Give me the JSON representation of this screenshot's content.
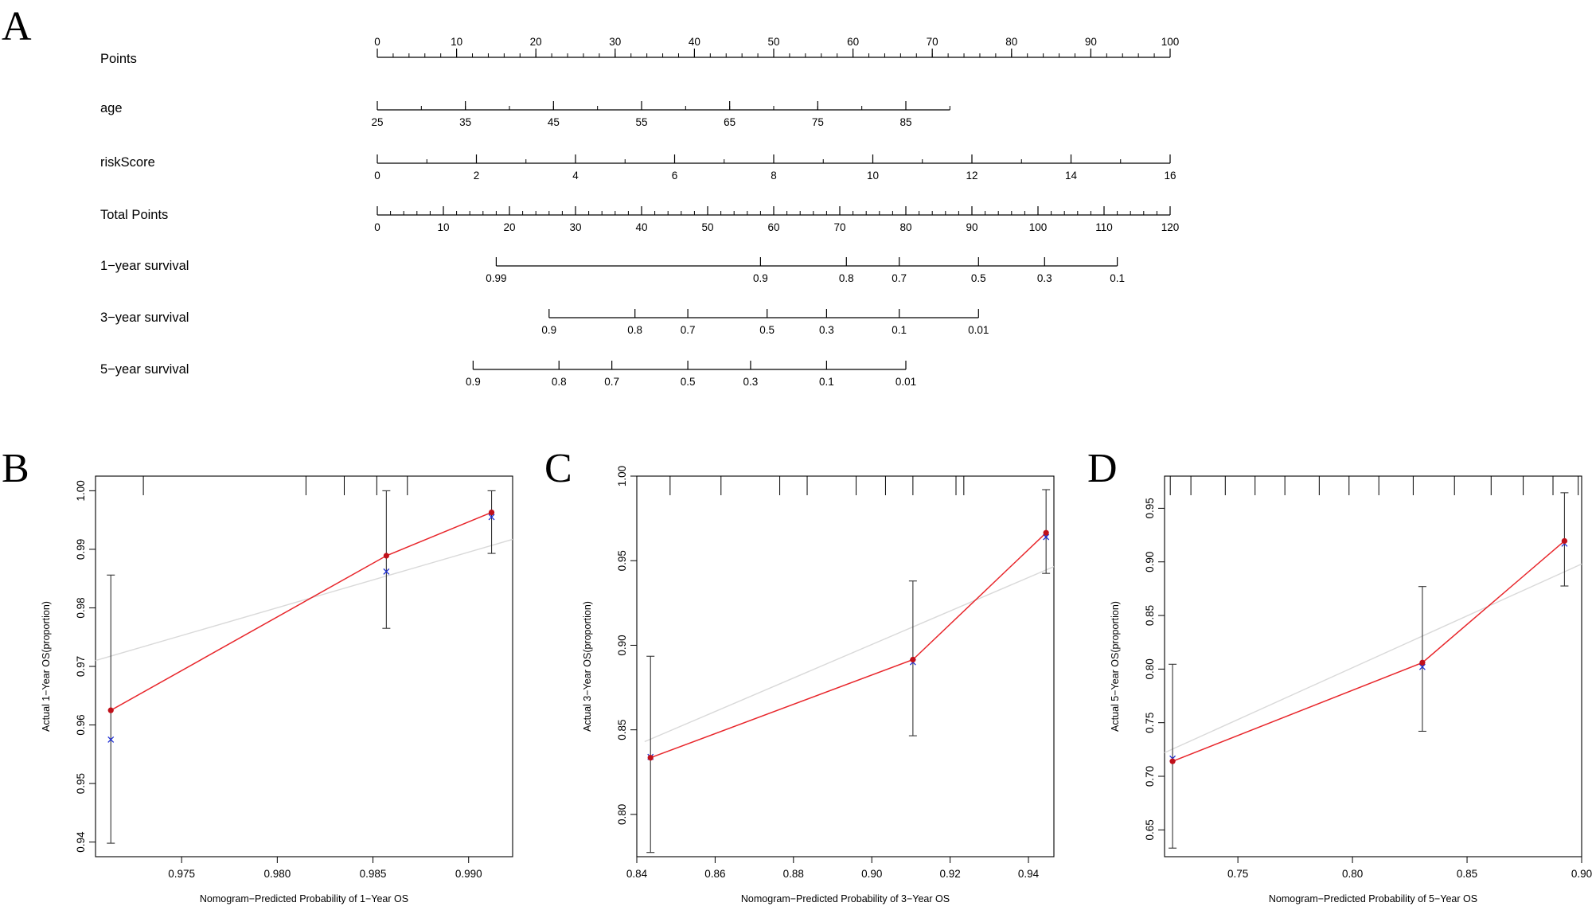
{
  "panel_letters": [
    "A",
    "B",
    "C",
    "D"
  ],
  "chart_data": [
    {
      "panel": "A",
      "type": "nomogram",
      "scales": [
        {
          "label": "Points",
          "ticks": [
            0,
            10,
            20,
            30,
            40,
            50,
            60,
            70,
            80,
            90,
            100
          ],
          "labels_above": true,
          "min": 0,
          "max": 100,
          "minor_step": 2
        },
        {
          "label": "age",
          "ticks": [
            25,
            35,
            45,
            55,
            65,
            75,
            85
          ],
          "min": 25,
          "max": 90,
          "minor_step": 5
        },
        {
          "label": "riskScore",
          "ticks": [
            0,
            2,
            4,
            6,
            8,
            10,
            12,
            14,
            16
          ],
          "min": 0,
          "max": 16,
          "minor_step": 1
        },
        {
          "label": "Total Points",
          "ticks": [
            0,
            10,
            20,
            30,
            40,
            50,
            60,
            70,
            80,
            90,
            100,
            110,
            120
          ],
          "min": 0,
          "max": 120,
          "minor_step": 2
        },
        {
          "label": "1−year survival",
          "prob_ticks": [
            "0.99",
            "0.9",
            "0.8",
            "0.7",
            "0.5",
            "0.3",
            "0.1"
          ],
          "total_points_at": [
            18,
            58,
            71,
            79,
            91,
            101,
            112
          ]
        },
        {
          "label": "3−year survival",
          "prob_ticks": [
            "0.9",
            "0.8",
            "0.7",
            "0.5",
            "0.3",
            "0.1",
            "0.01"
          ],
          "total_points_at": [
            26,
            39,
            47,
            59,
            68,
            79,
            91
          ]
        },
        {
          "label": "5−year survival",
          "prob_ticks": [
            "0.9",
            "0.8",
            "0.7",
            "0.5",
            "0.3",
            "0.1",
            "0.01"
          ],
          "total_points_at": [
            14.5,
            27.5,
            35.5,
            47,
            56.5,
            68,
            80
          ]
        }
      ]
    },
    {
      "panel": "B",
      "type": "calibration",
      "xlabel": "Nomogram−Predicted Probability of 1−Year OS",
      "ylabel": "Actual 1−Year OS(proportion)",
      "xlim": [
        0.9705,
        0.9923
      ],
      "ylim": [
        0.9375,
        1.0025
      ],
      "xticks": [
        "0.975",
        "0.980",
        "0.985",
        "0.990"
      ],
      "yticks": [
        "0.94",
        "0.95",
        "0.96",
        "0.97",
        "0.98",
        "0.99",
        "1.00"
      ],
      "top_rug": [
        0.973,
        0.9815,
        0.9835,
        0.9852,
        0.9868
      ],
      "observed": [
        {
          "x": 0.9713,
          "y": 0.9625
        },
        {
          "x": 0.9857,
          "y": 0.9889
        },
        {
          "x": 0.9912,
          "y": 0.9963
        }
      ],
      "corrected": [
        {
          "x": 0.9713,
          "y": 0.9575
        },
        {
          "x": 0.9857,
          "y": 0.9862
        },
        {
          "x": 0.9912,
          "y": 0.9955
        }
      ],
      "error_bars": [
        {
          "x": 0.9713,
          "low": 0.9398,
          "high": 0.9856
        },
        {
          "x": 0.9857,
          "low": 0.9765,
          "high": 1.0
        },
        {
          "x": 0.9912,
          "low": 0.9893,
          "high": 1.0
        }
      ],
      "ideal_line": [
        {
          "x": 0.9705,
          "y": 0.971
        },
        {
          "x": 0.9923,
          "y": 0.9917
        }
      ]
    },
    {
      "panel": "C",
      "type": "calibration",
      "xlabel": "Nomogram−Predicted Probability of 3−Year OS",
      "ylabel": "Actual 3−Year OS(proportion)",
      "xlim": [
        0.84,
        0.9465
      ],
      "ylim": [
        0.775,
        1.0
      ],
      "xticks": [
        "0.84",
        "0.86",
        "0.88",
        "0.90",
        "0.92",
        "0.94"
      ],
      "yticks": [
        "0.80",
        "0.85",
        "0.90",
        "0.95",
        "1.00"
      ],
      "top_rug": [
        0.8485,
        0.8615,
        0.8765,
        0.8835,
        0.896,
        0.9035,
        0.9105,
        0.9215,
        0.9235
      ],
      "observed": [
        {
          "x": 0.8435,
          "y": 0.8335
        },
        {
          "x": 0.9105,
          "y": 0.8915
        },
        {
          "x": 0.9445,
          "y": 0.9665
        }
      ],
      "corrected": [
        {
          "x": 0.8435,
          "y": 0.834
        },
        {
          "x": 0.9105,
          "y": 0.89
        },
        {
          "x": 0.9445,
          "y": 0.964
        }
      ],
      "error_bars": [
        {
          "x": 0.8435,
          "low": 0.7775,
          "high": 0.8935
        },
        {
          "x": 0.9105,
          "low": 0.8465,
          "high": 0.938
        },
        {
          "x": 0.9445,
          "low": 0.9425,
          "high": 0.992
        }
      ],
      "ideal_line": [
        {
          "x": 0.842,
          "y": 0.843
        },
        {
          "x": 0.9465,
          "y": 0.9465
        }
      ]
    },
    {
      "panel": "D",
      "type": "calibration",
      "xlabel": "Nomogram−Predicted Probability of 5−Year OS",
      "ylabel": "Actual 5−Year OS(proportion)",
      "xlim": [
        0.718,
        0.9
      ],
      "ylim": [
        0.625,
        0.98
      ],
      "xticks": [
        "0.75",
        "0.80",
        "0.85",
        "0.90"
      ],
      "yticks": [
        "0.65",
        "0.70",
        "0.75",
        "0.80",
        "0.85",
        "0.90",
        "0.95"
      ],
      "top_rug": [
        0.7205,
        0.7295,
        0.7445,
        0.7575,
        0.7705,
        0.7855,
        0.7985,
        0.8115,
        0.8265,
        0.8445,
        0.8605,
        0.8745,
        0.8875,
        0.8985
      ],
      "observed": [
        {
          "x": 0.7215,
          "y": 0.714
        },
        {
          "x": 0.8305,
          "y": 0.806
        },
        {
          "x": 0.8925,
          "y": 0.9195
        }
      ],
      "corrected": [
        {
          "x": 0.7215,
          "y": 0.7165
        },
        {
          "x": 0.8305,
          "y": 0.802
        },
        {
          "x": 0.8925,
          "y": 0.917
        }
      ],
      "error_bars": [
        {
          "x": 0.7215,
          "low": 0.633,
          "high": 0.8045
        },
        {
          "x": 0.8305,
          "low": 0.742,
          "high": 0.877
        },
        {
          "x": 0.8925,
          "low": 0.8775,
          "high": 0.9645
        }
      ],
      "ideal_line": [
        {
          "x": 0.718,
          "y": 0.722
        },
        {
          "x": 0.9,
          "y": 0.898
        }
      ]
    }
  ]
}
